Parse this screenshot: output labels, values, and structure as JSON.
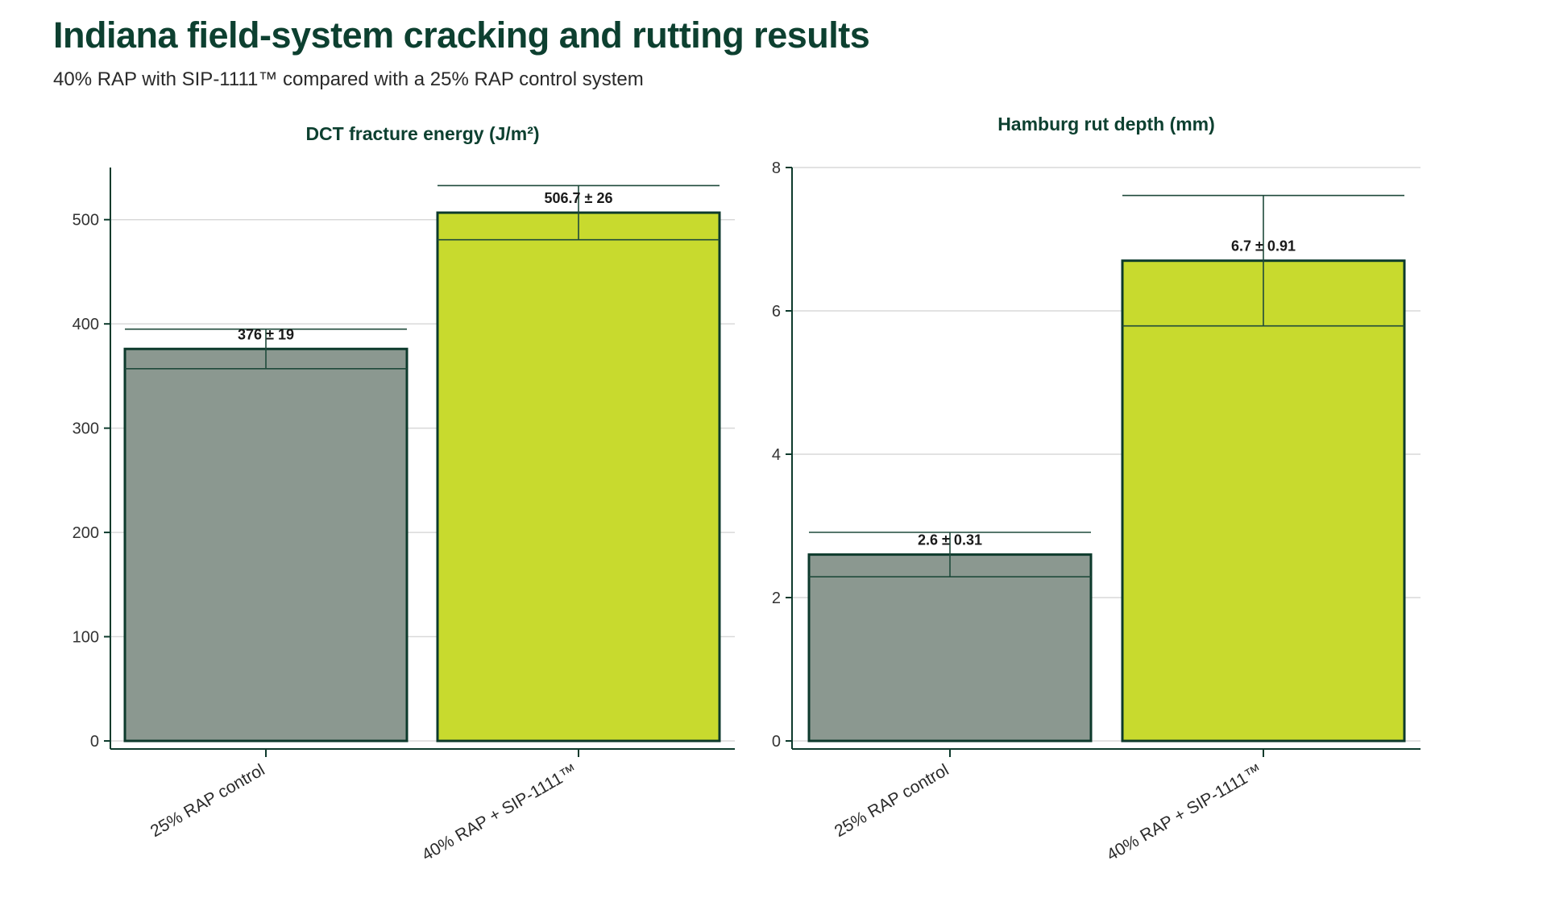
{
  "title": "Indiana field-system cracking and rutting results",
  "subtitle": "40% RAP with SIP-1111™ compared with a 25% RAP control system",
  "colors": {
    "control": "#8b9890",
    "sip": "#c8da2e",
    "outline": "#0d3a2c",
    "title": "#0d4030"
  },
  "chart_data": [
    {
      "type": "bar",
      "title": "DCT fracture energy (J/m²)",
      "xlabel": "",
      "ylabel": "",
      "categories": [
        "25% RAP control",
        "40% RAP + SIP-1111™"
      ],
      "values": [
        376,
        506.7
      ],
      "errors": [
        19,
        26
      ],
      "data_labels": [
        "376 ± 19",
        "506.7 ± 26"
      ],
      "ylim": [
        0,
        550
      ],
      "yticks": [
        0,
        100,
        200,
        300,
        400,
        500
      ],
      "grid": true
    },
    {
      "type": "bar",
      "title": "Hamburg rut depth (mm)",
      "xlabel": "",
      "ylabel": "",
      "categories": [
        "25% RAP control",
        "40% RAP + SIP-1111™"
      ],
      "values": [
        2.6,
        6.7
      ],
      "errors": [
        0.31,
        0.91
      ],
      "data_labels": [
        "2.6 ± 0.31",
        "6.7 ± 0.91"
      ],
      "ylim": [
        0,
        8
      ],
      "yticks": [
        0,
        2,
        4,
        6,
        8
      ],
      "grid": true
    }
  ]
}
